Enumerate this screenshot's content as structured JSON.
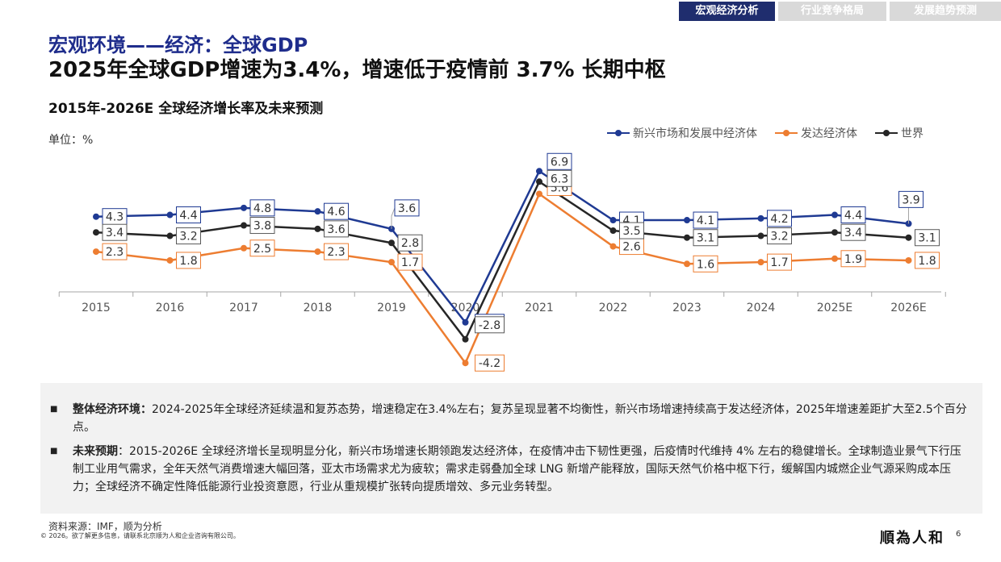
{
  "tabs": [
    {
      "label": "宏观经济分析",
      "active": true
    },
    {
      "label": "行业竞争格局",
      "active": false
    },
    {
      "label": "发展趋势预测",
      "active": false
    }
  ],
  "section_title": "宏观环境——经济：全球GDP",
  "headline": "2025年全球GDP增速为3.4%，增速低于疫情前 3.7% 长期中枢",
  "chart_data": {
    "type": "line",
    "title": "2015年-2026E 全球经济增长率及未来预测",
    "unit_label": "单位：%",
    "categories": [
      "2015",
      "2016",
      "2017",
      "2018",
      "2019",
      "2020",
      "2021",
      "2022",
      "2023",
      "2024",
      "2025E",
      "2026E"
    ],
    "ylim": [
      -5,
      8
    ],
    "grid": false,
    "legend_position": "top-right",
    "series": [
      {
        "name": "新兴市场和发展中经济体",
        "color": "#1f3a93",
        "values": [
          4.3,
          4.4,
          4.8,
          4.6,
          3.6,
          -1.8,
          6.9,
          4.1,
          4.1,
          4.2,
          4.4,
          3.9
        ]
      },
      {
        "name": "发达经济体",
        "color": "#ed7d31",
        "values": [
          2.3,
          1.8,
          2.5,
          2.3,
          1.7,
          -4.2,
          5.6,
          2.6,
          1.6,
          1.7,
          1.9,
          1.8
        ]
      },
      {
        "name": "世界",
        "color": "#262626",
        "values": [
          3.4,
          3.2,
          3.8,
          3.6,
          2.8,
          -2.8,
          6.3,
          3.5,
          3.1,
          3.2,
          3.4,
          3.1
        ]
      }
    ]
  },
  "notes": [
    {
      "label": "整体经济环境：",
      "text": "2024-2025年全球经济延续温和复苏态势，增速稳定在3.4%左右；复苏呈现显著不均衡性，新兴市场增速持续高于发达经济体，2025年增速差距扩大至2.5个百分点。"
    },
    {
      "label": "未来预期",
      "text": "：2015-2026E 全球经济增长呈现明显分化，新兴市场增速长期领跑发达经济体，在疫情冲击下韧性更强，后疫情时代维持 4% 左右的稳健增长。全球制造业景气下行压制工业用气需求，全年天然气消费增速大幅回落，亚太市场需求尤为疲软；需求走弱叠加全球 LNG 新增产能释放，国际天然气价格中枢下行，缓解国内城燃企业气源采购成本压力；全球经济不确定性降低能源行业投资意愿，行业从重规模扩张转向提质增效、多元业务转型。"
    }
  ],
  "source": "资料来源：IMF，顺为分析",
  "copyright": "© 2026。欲了解更多信息，请联系北京顺为人和企业咨询有限公司。",
  "logo_text": "順為人和",
  "page_number": "6"
}
